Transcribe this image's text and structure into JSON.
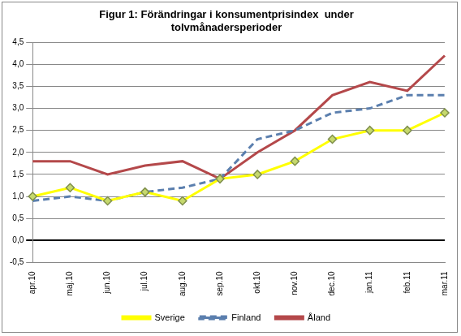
{
  "chart_data": {
    "type": "line",
    "title": "Figur 1: Förändringar i konsumentprisindex  under\ntolvmånadersperioder",
    "categories": [
      "apr.10",
      "maj.10",
      "jun.10",
      "jul.10",
      "aug.10",
      "sep.10",
      "okt.10",
      "nov.10",
      "dec.10",
      "jan.11",
      "feb.11",
      "mar.11"
    ],
    "series": [
      {
        "name": "Sverige",
        "color": "#ffff00",
        "marker": "diamond",
        "line_style": "solid",
        "values": [
          1.0,
          1.2,
          0.9,
          1.1,
          0.9,
          1.4,
          1.5,
          1.8,
          2.3,
          2.5,
          2.5,
          2.9
        ]
      },
      {
        "name": "Finland",
        "color": "#5b7fae",
        "marker": "none",
        "line_style": "dashed",
        "values": [
          0.9,
          1.0,
          0.9,
          1.1,
          1.2,
          1.4,
          2.3,
          2.5,
          2.9,
          3.0,
          3.3,
          3.3
        ]
      },
      {
        "name": "Åland",
        "color": "#b4484a",
        "marker": "none",
        "line_style": "solid",
        "values": [
          1.8,
          1.8,
          1.5,
          1.7,
          1.8,
          1.4,
          2.0,
          2.5,
          3.3,
          3.6,
          3.4,
          4.2
        ]
      }
    ],
    "ylim": [
      -0.5,
      4.5
    ],
    "yticks": [
      {
        "value": -0.5,
        "label": "-0,5"
      },
      {
        "value": 0,
        "label": "0,0"
      },
      {
        "value": 0.5,
        "label": "0,5"
      },
      {
        "value": 1.0,
        "label": "1,0"
      },
      {
        "value": 1.5,
        "label": "1,5"
      },
      {
        "value": 2.0,
        "label": "2,0"
      },
      {
        "value": 2.5,
        "label": "2,5"
      },
      {
        "value": 3.0,
        "label": "3,0"
      },
      {
        "value": 3.5,
        "label": "3,5"
      },
      {
        "value": 4.0,
        "label": "4,0"
      },
      {
        "value": 4.5,
        "label": "4,5"
      }
    ],
    "grid": true,
    "legend": "bottom"
  }
}
